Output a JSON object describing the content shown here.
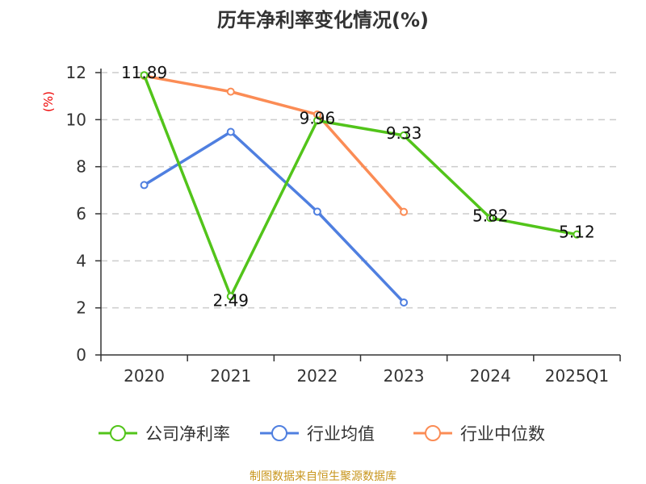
{
  "chart_data": {
    "type": "line",
    "title": "历年净利率变化情况(%)",
    "ylabel": "(%)",
    "xlabel": "",
    "categories": [
      "2020",
      "2021",
      "2022",
      "2023",
      "2024",
      "2025Q1"
    ],
    "ylim": [
      0,
      12
    ],
    "yticks": [
      0,
      2,
      4,
      6,
      8,
      10,
      12
    ],
    "grid": true,
    "legend_position": "bottom",
    "series": [
      {
        "name": "公司净利率",
        "color": "#52c41a",
        "values": [
          11.89,
          2.49,
          9.96,
          9.33,
          5.82,
          5.12
        ],
        "labels": [
          "11.89",
          "2.49",
          "9.96",
          "9.33",
          "5.82",
          "5.12"
        ]
      },
      {
        "name": "行业均值",
        "color": "#4f7fe0",
        "values": [
          7.22,
          9.48,
          6.09,
          2.23,
          null,
          null
        ]
      },
      {
        "name": "行业中位数",
        "color": "#fb8c55",
        "values": [
          11.86,
          11.19,
          10.22,
          6.08,
          null,
          null
        ]
      }
    ],
    "source": "制图数据来自恒生聚源数据库"
  }
}
